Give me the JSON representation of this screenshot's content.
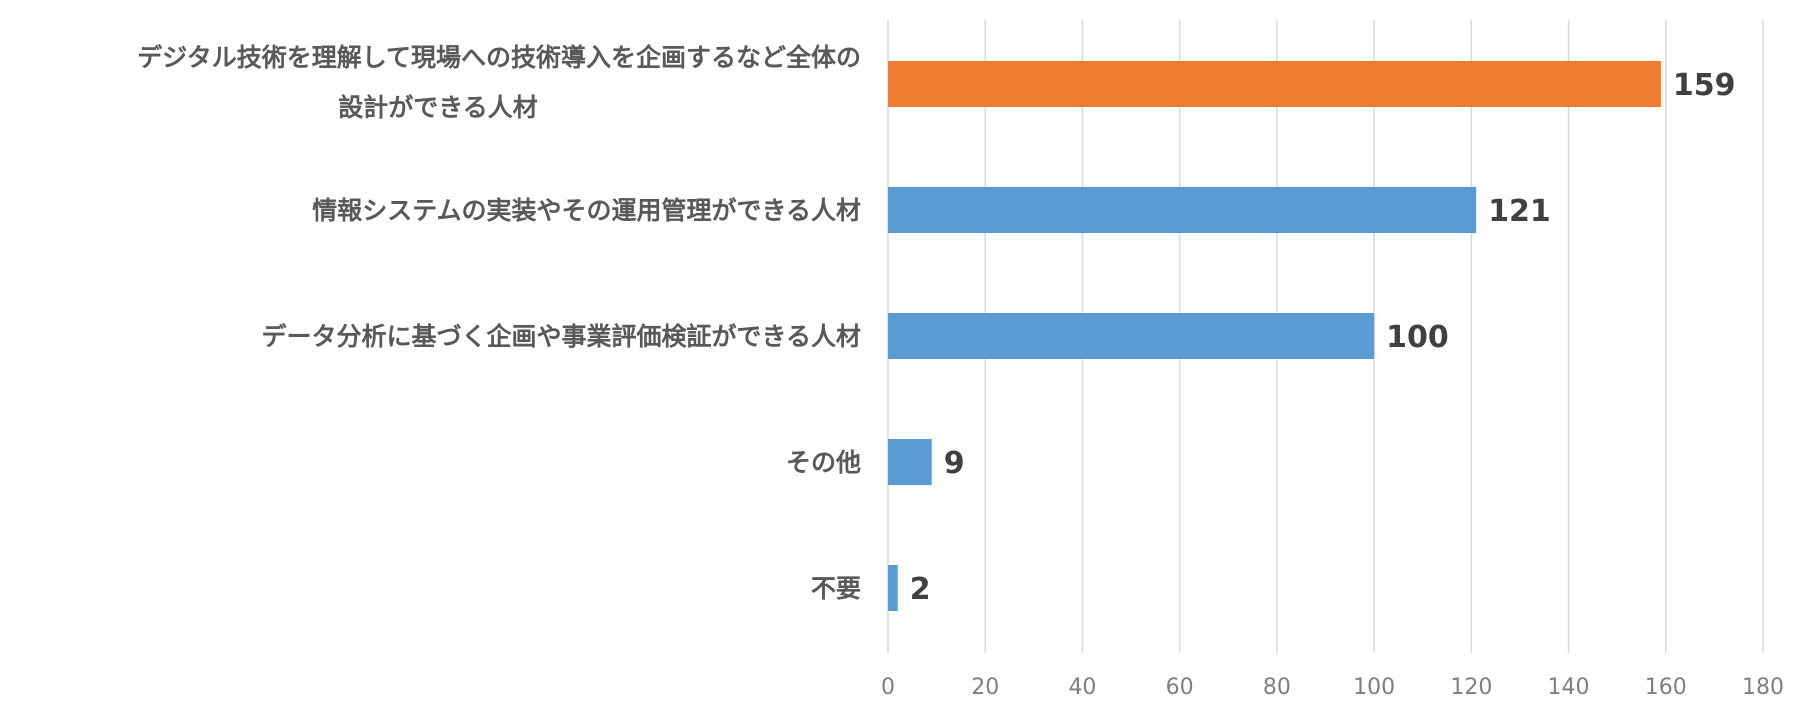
{
  "chart_data": {
    "type": "bar",
    "orientation": "horizontal",
    "categories": [
      [
        "デジタル技術を理解して現場への技術導入を企画するなど全体の",
        "設計ができる人材"
      ],
      [
        "情報システムの実装やその運用管理ができる人材"
      ],
      [
        "データ分析に基づく企画や事業評価検証ができる人材"
      ],
      [
        "その他"
      ],
      [
        "不要"
      ]
    ],
    "values": [
      159,
      121,
      100,
      9,
      2
    ],
    "bar_colors": [
      "#ED7D31",
      "#5B9BD5",
      "#5B9BD5",
      "#5B9BD5",
      "#5B9BD5"
    ],
    "xlim": [
      0,
      180
    ],
    "xticks": [
      0,
      20,
      40,
      60,
      80,
      100,
      120,
      140,
      160,
      180
    ],
    "grid": "vertical",
    "data_labels": [
      "159",
      "121",
      "100",
      "9",
      "2"
    ]
  }
}
